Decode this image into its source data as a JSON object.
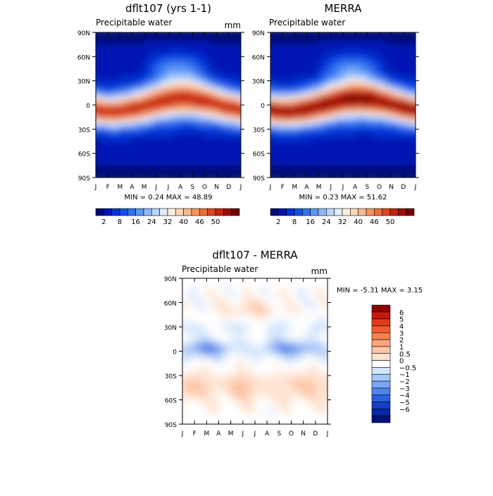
{
  "chart_data": [
    {
      "type": "heatmap",
      "title": "dflt107 (yrs 1-1)",
      "variable": "Precipitable water",
      "units": "mm",
      "x_ticks": [
        "J",
        "F",
        "M",
        "A",
        "M",
        "J",
        "J",
        "A",
        "S",
        "O",
        "N",
        "D",
        "J"
      ],
      "y_ticks": [
        "90N",
        "60N",
        "30N",
        "0",
        "30S",
        "60S",
        "90S"
      ],
      "stats": "MIN =    0.24  MAX =    48.89",
      "min": 0.24,
      "max": 48.89,
      "colorbar_labels": [
        "2",
        "8",
        "16",
        "24",
        "32",
        "40",
        "46",
        "50"
      ],
      "colorbar_colors": [
        "#000a78",
        "#0016b4",
        "#0532d2",
        "#1450e6",
        "#3273f0",
        "#5a96f5",
        "#8cb9fa",
        "#b9d7fc",
        "#e1eefe",
        "#fdeee0",
        "#fcd7b9",
        "#fab991",
        "#f5965f",
        "#eb6e3a",
        "#dc461e",
        "#c3230f",
        "#9b0f05",
        "#730000"
      ],
      "colorbar_range": [
        0,
        52
      ]
    },
    {
      "type": "heatmap",
      "title": "MERRA",
      "variable": "Precipitable water",
      "units": "",
      "x_ticks": [
        "J",
        "F",
        "M",
        "A",
        "M",
        "J",
        "J",
        "A",
        "S",
        "O",
        "N",
        "D",
        "J"
      ],
      "y_ticks": [
        "90N",
        "60N",
        "30N",
        "0",
        "30S",
        "60S",
        "90S"
      ],
      "stats": "MIN =    0.23  MAX =    51.62",
      "min": 0.23,
      "max": 51.62,
      "colorbar_labels": [
        "2",
        "8",
        "16",
        "24",
        "32",
        "40",
        "46",
        "50"
      ],
      "colorbar_colors": [
        "#000a78",
        "#0016b4",
        "#0532d2",
        "#1450e6",
        "#3273f0",
        "#5a96f5",
        "#8cb9fa",
        "#b9d7fc",
        "#e1eefe",
        "#fdeee0",
        "#fcd7b9",
        "#fab991",
        "#f5965f",
        "#eb6e3a",
        "#dc461e",
        "#c3230f",
        "#9b0f05",
        "#730000"
      ],
      "colorbar_range": [
        0,
        52
      ]
    },
    {
      "type": "heatmap",
      "title": "dflt107 - MERRA",
      "variable": "Precipitable water",
      "units": "mm",
      "x_ticks": [
        "J",
        "F",
        "M",
        "A",
        "M",
        "J",
        "J",
        "A",
        "S",
        "O",
        "N",
        "D",
        "J"
      ],
      "y_ticks": [
        "90N",
        "60N",
        "30N",
        "0",
        "30S",
        "60S",
        "90S"
      ],
      "stats": "MIN =   -5.31  MAX =    3.15",
      "min": -5.31,
      "max": 3.15,
      "colorbar_labels": [
        "6",
        "5",
        "4",
        "3",
        "2",
        "1",
        "0.5",
        "0",
        "−0.5",
        "−1",
        "−2",
        "−3",
        "−4",
        "−5",
        "−6"
      ],
      "colorbar_colors": [
        "#8b0000",
        "#c41a0a",
        "#e0391a",
        "#ef5b2e",
        "#f7814f",
        "#fba57c",
        "#fdc6a8",
        "#fee4d2",
        "#ffffff",
        "#d5e6fc",
        "#a9c6f8",
        "#7ba6f2",
        "#4d82ea",
        "#2a5fe0",
        "#1340c8",
        "#0626a3",
        "#00127a"
      ],
      "colorbar_range": [
        -7,
        7
      ]
    }
  ]
}
